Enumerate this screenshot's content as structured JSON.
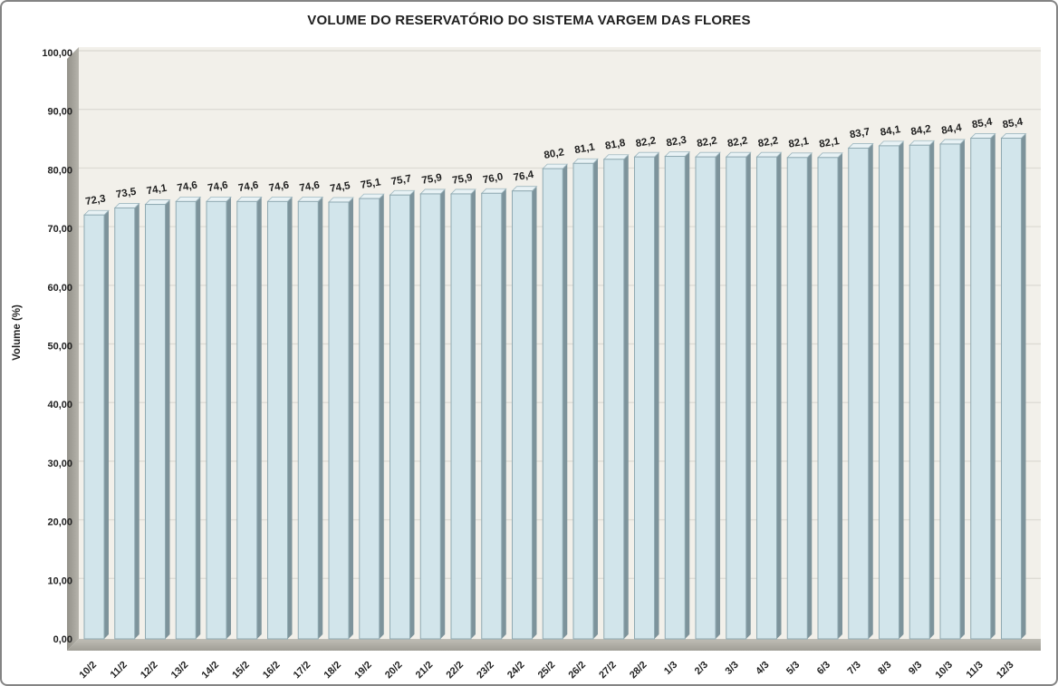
{
  "chart_data": {
    "type": "bar",
    "title": "VOLUME DO RESERVATÓRIO DO SISTEMA VARGEM DAS FLORES",
    "ylabel": "Volume (%)",
    "xlabel": "",
    "ylim": [
      0,
      100
    ],
    "grid": true,
    "legend": "none",
    "categories": [
      "10/2",
      "11/2",
      "12/2",
      "13/2",
      "14/2",
      "15/2",
      "16/2",
      "17/2",
      "18/2",
      "19/2",
      "20/2",
      "21/2",
      "22/2",
      "23/2",
      "24/2",
      "25/2",
      "26/2",
      "27/2",
      "28/2",
      "1/3",
      "2/3",
      "3/3",
      "4/3",
      "5/3",
      "6/3",
      "7/3",
      "8/3",
      "9/3",
      "10/3",
      "11/3",
      "12/3"
    ],
    "values": [
      72.3,
      73.5,
      74.1,
      74.6,
      74.6,
      74.6,
      74.6,
      74.6,
      74.5,
      75.1,
      75.7,
      75.9,
      75.9,
      76.0,
      76.4,
      80.2,
      81.1,
      81.8,
      82.2,
      82.3,
      82.2,
      82.2,
      82.2,
      82.1,
      82.1,
      83.7,
      84.1,
      84.2,
      84.4,
      85.4,
      85.4
    ],
    "value_labels": [
      "72,3",
      "73,5",
      "74,1",
      "74,6",
      "74,6",
      "74,6",
      "74,6",
      "74,6",
      "74,5",
      "75,1",
      "75,7",
      "75,9",
      "75,9",
      "76,0",
      "76,4",
      "80,2",
      "81,1",
      "81,8",
      "82,2",
      "82,3",
      "82,2",
      "82,2",
      "82,2",
      "82,1",
      "82,1",
      "83,7",
      "84,1",
      "84,2",
      "84,4",
      "85,4",
      "85,4"
    ],
    "y_ticks": [
      "0,00",
      "10,00",
      "20,00",
      "30,00",
      "40,00",
      "50,00",
      "60,00",
      "70,00",
      "80,00",
      "90,00",
      "100,00"
    ],
    "colors": {
      "bar_face": "#d2e5eb",
      "bar_face_edge": "#8fa9b1",
      "bar_side": "#7d939b",
      "bar_top": "#e8f2f5",
      "bar_top_edge": "#9fb8c0",
      "plot_bg": "#f2f0ea",
      "grid_line": "#dedcd5",
      "wall_dark": "#94928a",
      "wall_light": "#b5b3ab",
      "floor_light": "#c0beb6",
      "floor_dark": "#a09e96",
      "text": "#1f1f1f",
      "frame_border": "#848484"
    }
  }
}
